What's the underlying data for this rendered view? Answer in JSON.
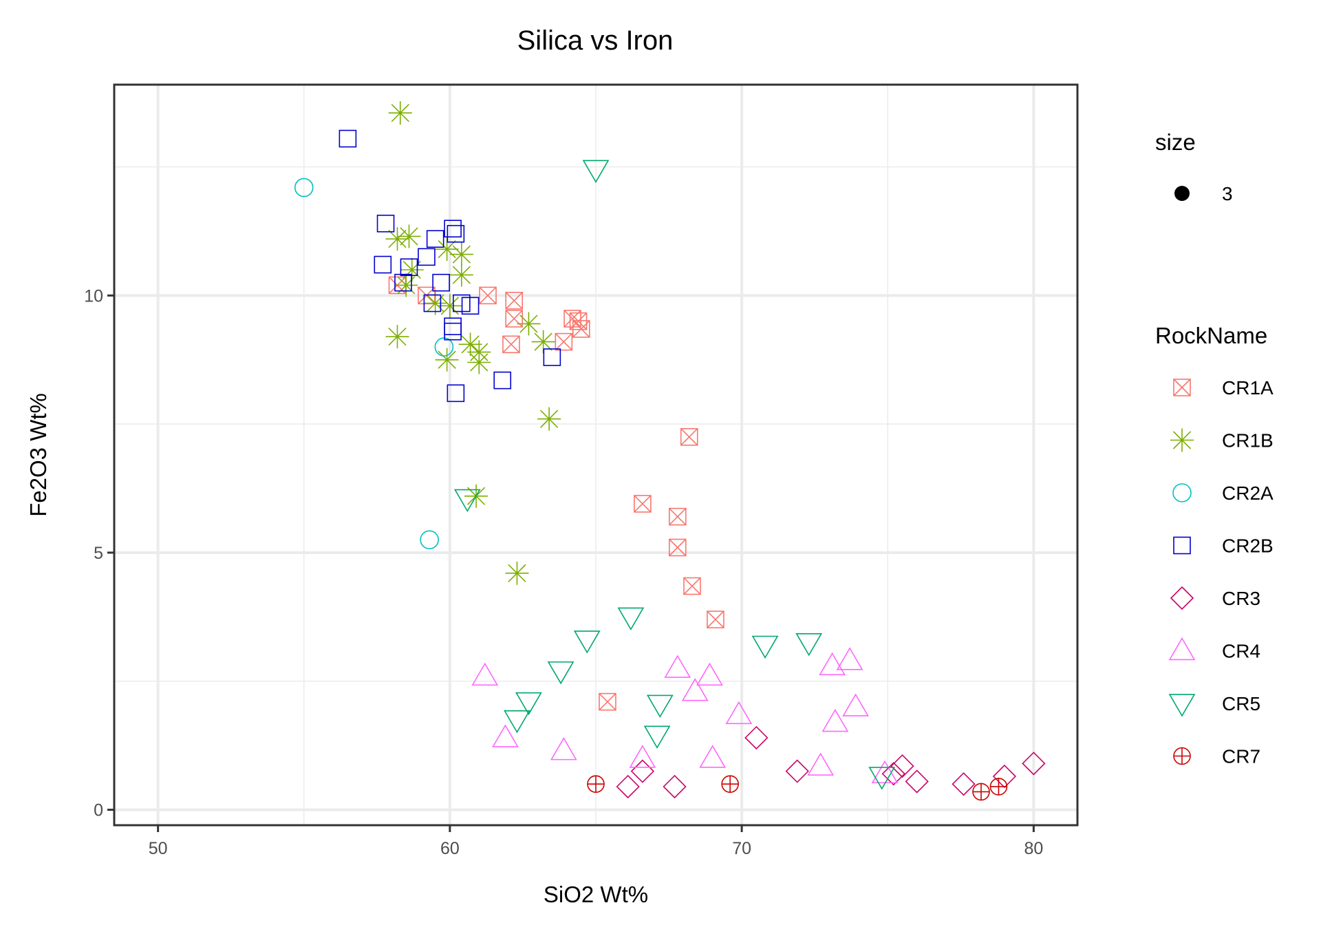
{
  "chart_data": {
    "type": "scatter",
    "title": "Silica vs Iron",
    "xlabel": "SiO2 Wt%",
    "ylabel": "Fe2O3 Wt%",
    "xlim": [
      48.5,
      81.5
    ],
    "ylim": [
      -0.3,
      14.1
    ],
    "x_ticks": [
      50,
      60,
      70,
      80
    ],
    "y_ticks": [
      0,
      5,
      10
    ],
    "x_minor": [
      55,
      65,
      75
    ],
    "y_minor": [
      2.5,
      7.5,
      12.5
    ],
    "grid": true,
    "legend_position": "right",
    "size_legend": {
      "title": "size",
      "label": "3"
    },
    "legend_title": "RockName",
    "series": [
      {
        "name": "CR1A",
        "shape": "square-cross",
        "color": "#F8766D",
        "points": [
          [
            58.2,
            10.2
          ],
          [
            59.2,
            10.0
          ],
          [
            61.3,
            10.0
          ],
          [
            62.2,
            9.9
          ],
          [
            62.2,
            9.55
          ],
          [
            62.1,
            9.05
          ],
          [
            63.9,
            9.1
          ],
          [
            64.2,
            9.55
          ],
          [
            64.4,
            9.5
          ],
          [
            64.5,
            9.35
          ],
          [
            68.2,
            7.25
          ],
          [
            66.6,
            5.95
          ],
          [
            67.8,
            5.7
          ],
          [
            67.8,
            5.1
          ],
          [
            68.3,
            4.35
          ],
          [
            69.1,
            3.7
          ],
          [
            65.4,
            2.1
          ]
        ]
      },
      {
        "name": "CR1B",
        "shape": "asterisk",
        "color": "#7CAE00",
        "points": [
          [
            58.3,
            13.55
          ],
          [
            58.2,
            11.1
          ],
          [
            58.6,
            11.15
          ],
          [
            58.7,
            10.5
          ],
          [
            58.5,
            10.2
          ],
          [
            59.9,
            10.9
          ],
          [
            60.4,
            10.8
          ],
          [
            60.4,
            10.4
          ],
          [
            59.5,
            9.85
          ],
          [
            60.0,
            9.8
          ],
          [
            62.7,
            9.45
          ],
          [
            63.2,
            9.1
          ],
          [
            58.2,
            9.2
          ],
          [
            60.7,
            9.05
          ],
          [
            61.0,
            8.9
          ],
          [
            59.9,
            8.75
          ],
          [
            61.0,
            8.7
          ],
          [
            63.4,
            7.6
          ],
          [
            60.9,
            6.1
          ],
          [
            62.3,
            4.6
          ]
        ]
      },
      {
        "name": "CR2A",
        "shape": "circle",
        "color": "#00BFC4",
        "points": [
          [
            55.0,
            12.1
          ],
          [
            59.8,
            9.0
          ],
          [
            59.3,
            5.25
          ]
        ]
      },
      {
        "name": "CR2B",
        "shape": "square",
        "color": "#0000CC",
        "points": [
          [
            56.5,
            13.05
          ],
          [
            57.8,
            11.4
          ],
          [
            59.5,
            11.1
          ],
          [
            60.1,
            11.3
          ],
          [
            60.2,
            11.2
          ],
          [
            57.7,
            10.6
          ],
          [
            58.6,
            10.55
          ],
          [
            59.2,
            10.75
          ],
          [
            58.4,
            10.25
          ],
          [
            59.7,
            10.25
          ],
          [
            59.4,
            9.85
          ],
          [
            60.4,
            9.85
          ],
          [
            60.7,
            9.8
          ],
          [
            60.1,
            9.4
          ],
          [
            60.1,
            9.3
          ],
          [
            63.5,
            8.8
          ],
          [
            60.2,
            8.1
          ],
          [
            61.8,
            8.35
          ]
        ]
      },
      {
        "name": "CR3",
        "shape": "diamond",
        "color": "#CC0066",
        "points": [
          [
            66.1,
            0.45
          ],
          [
            66.6,
            0.75
          ],
          [
            67.7,
            0.45
          ],
          [
            70.5,
            1.4
          ],
          [
            71.9,
            0.75
          ],
          [
            75.2,
            0.7
          ],
          [
            75.5,
            0.85
          ],
          [
            76.0,
            0.55
          ],
          [
            77.6,
            0.5
          ],
          [
            79.0,
            0.65
          ],
          [
            80.0,
            0.9
          ]
        ]
      },
      {
        "name": "CR4",
        "shape": "triangle-up",
        "color": "#FF66FF",
        "points": [
          [
            61.2,
            2.6
          ],
          [
            61.9,
            1.4
          ],
          [
            63.9,
            1.15
          ],
          [
            66.6,
            1.0
          ],
          [
            67.8,
            2.75
          ],
          [
            68.4,
            2.3
          ],
          [
            68.9,
            2.6
          ],
          [
            69.0,
            1.0
          ],
          [
            69.9,
            1.85
          ],
          [
            72.7,
            0.85
          ],
          [
            73.1,
            2.8
          ],
          [
            73.7,
            2.9
          ],
          [
            73.2,
            1.7
          ],
          [
            73.9,
            2.0
          ],
          [
            74.9,
            0.7
          ]
        ]
      },
      {
        "name": "CR5",
        "shape": "triangle-down",
        "color": "#00A86B",
        "points": [
          [
            65.0,
            12.45
          ],
          [
            60.6,
            6.05
          ],
          [
            66.2,
            3.75
          ],
          [
            64.7,
            3.3
          ],
          [
            63.8,
            2.7
          ],
          [
            62.7,
            2.1
          ],
          [
            62.3,
            1.75
          ],
          [
            67.2,
            2.05
          ],
          [
            67.1,
            1.45
          ],
          [
            70.8,
            3.2
          ],
          [
            72.3,
            3.25
          ],
          [
            74.8,
            0.65
          ]
        ]
      },
      {
        "name": "CR7",
        "shape": "circle-plus",
        "color": "#CC0000",
        "points": [
          [
            65.0,
            0.5
          ],
          [
            69.6,
            0.5
          ],
          [
            78.2,
            0.35
          ],
          [
            78.8,
            0.45
          ]
        ]
      }
    ]
  }
}
